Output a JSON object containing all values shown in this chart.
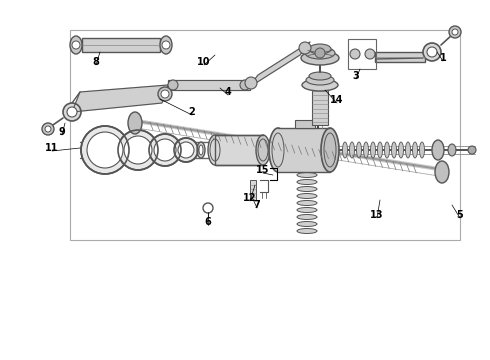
{
  "bg_color": "#ffffff",
  "border_color": "#aaaaaa",
  "line_color": "#555555",
  "part_color": "#333333",
  "gray_light": "#d8d8d8",
  "gray_mid": "#bbbbbb",
  "gray_dark": "#888888"
}
